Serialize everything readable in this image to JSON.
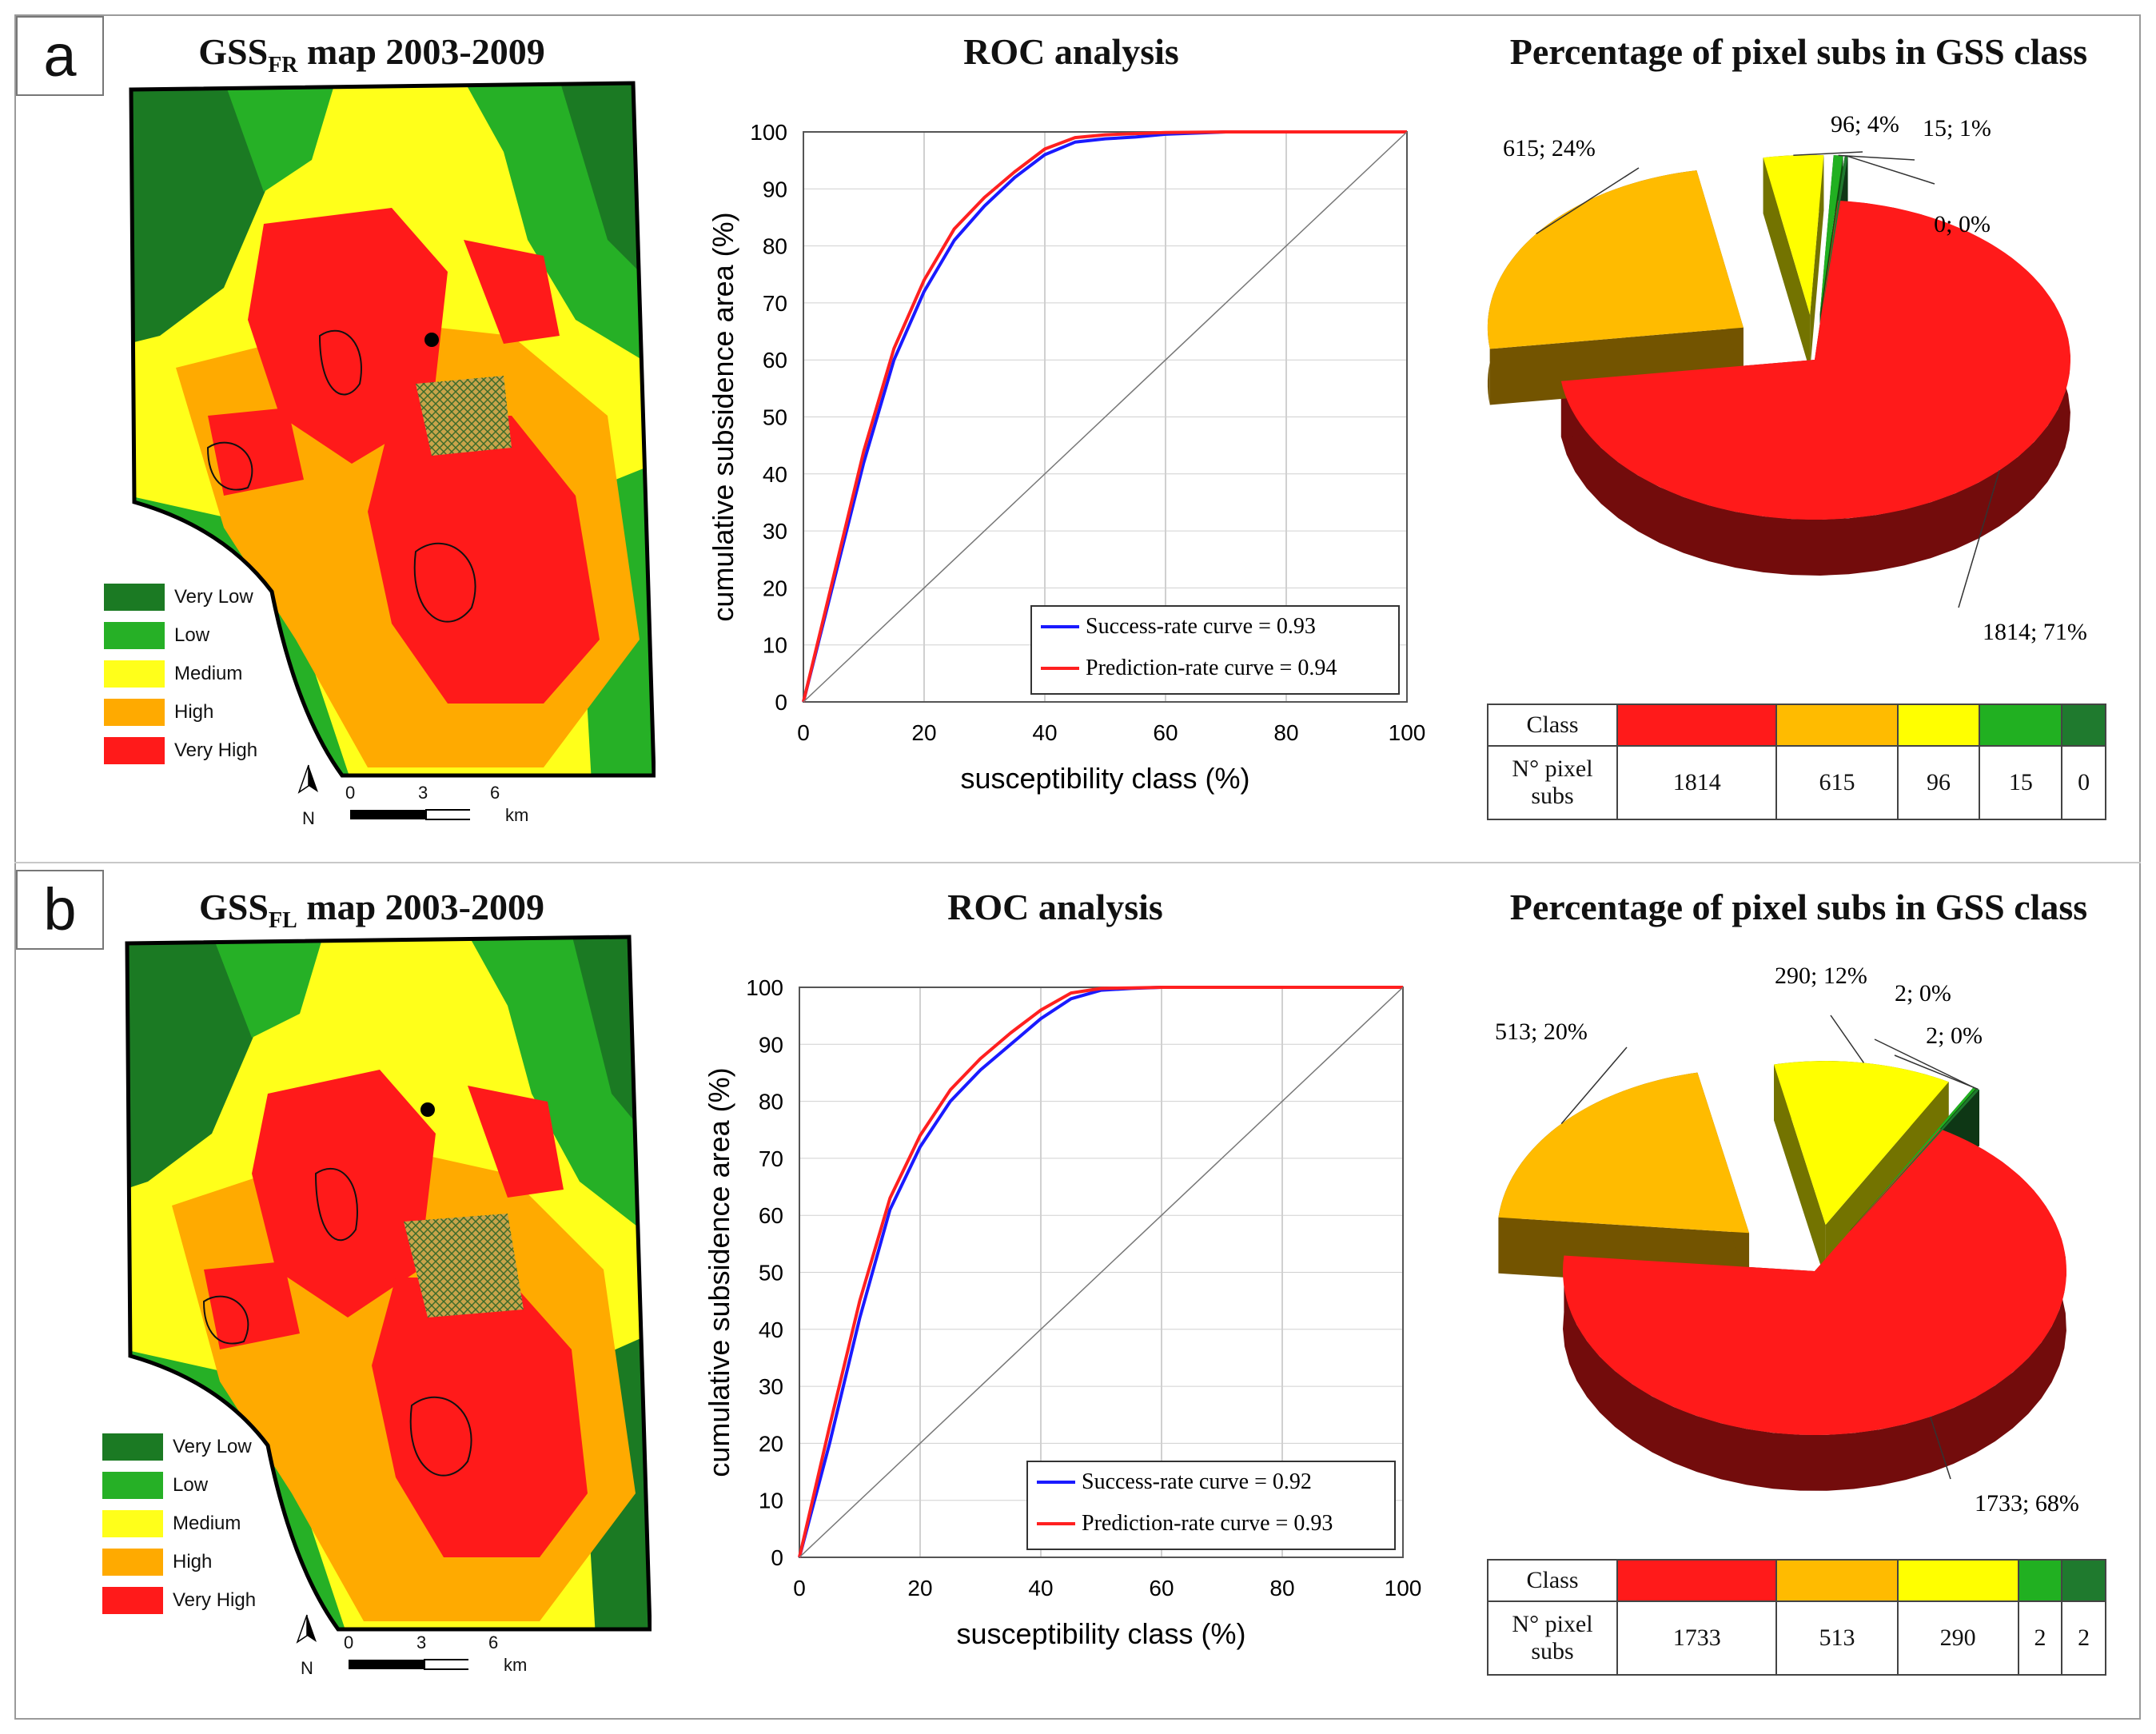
{
  "panels": [
    {
      "label": "a",
      "map_title_main": "GSS",
      "map_title_sub": "FR",
      "map_title_rest": "map 2003-2009",
      "roc_title": "ROC analysis",
      "pie_title": "Percentage of pixel subs in GSS class",
      "chart_data": {
        "type": "line",
        "title": "ROC analysis",
        "xlabel": "susceptibility class (%)",
        "ylabel": "cumulative subsidence area (%)",
        "xlim": [
          0,
          100
        ],
        "ylim": [
          0,
          100
        ],
        "xticks": [
          0,
          20,
          40,
          60,
          80,
          100
        ],
        "yticks": [
          0,
          10,
          20,
          30,
          40,
          50,
          60,
          70,
          80,
          90,
          100
        ],
        "grid": true,
        "legend_position": "bottom-right",
        "series": [
          {
            "name": "Success-rate curve = 0.93",
            "color": "#1a1aff",
            "x": [
              0,
              5,
              10,
              15,
              20,
              25,
              30,
              35,
              40,
              45,
              50,
              55,
              60,
              70,
              80,
              100
            ],
            "y": [
              0,
              21,
              42,
              60,
              72,
              81,
              87,
              92,
              96,
              98.2,
              98.8,
              99.1,
              99.6,
              100,
              100,
              100
            ]
          },
          {
            "name": "Prediction-rate curve = 0.94",
            "color": "#ff2020",
            "x": [
              0,
              5,
              10,
              15,
              20,
              25,
              30,
              35,
              40,
              45,
              50,
              55,
              60,
              70,
              80,
              100
            ],
            "y": [
              0,
              22,
              44,
              62,
              74,
              83,
              88.5,
              93,
              97,
              99,
              99.5,
              99.7,
              99.9,
              100,
              100,
              100
            ]
          },
          {
            "name": "reference",
            "color": "#777777",
            "x": [
              0,
              100
            ],
            "y": [
              0,
              100
            ]
          }
        ]
      },
      "pie_data": {
        "type": "pie",
        "categories": [
          "Very High",
          "High",
          "Medium",
          "Low",
          "Very Low"
        ],
        "values": [
          1814,
          615,
          96,
          15,
          0
        ],
        "labels": [
          "1814; 71%",
          "615; 24%",
          "96; 4%",
          "15; 1%",
          "0; 0%"
        ],
        "colors": [
          "#ff1a1a",
          "#ffbb00",
          "#ffff00",
          "#21b021",
          "#1f7a2e"
        ]
      },
      "table": {
        "class_label": "Class",
        "count_label": "N° pixel subs",
        "values": [
          "1814",
          "615",
          "96",
          "15",
          "0"
        ]
      },
      "legend": [
        {
          "label": "Very Low",
          "color": "#1b7a23"
        },
        {
          "label": "Low",
          "color": "#26b026"
        },
        {
          "label": "Medium",
          "color": "#ffff1a"
        },
        {
          "label": "High",
          "color": "#ffaa00"
        },
        {
          "label": "Very High",
          "color": "#ff1a1a"
        }
      ],
      "scale": {
        "north": "N",
        "t0": "0",
        "t1": "3",
        "t2": "6",
        "unit": "km"
      }
    },
    {
      "label": "b",
      "map_title_main": "GSS",
      "map_title_sub": "FL",
      "map_title_rest": "map 2003-2009",
      "roc_title": "ROC analysis",
      "pie_title": "Percentage of pixel subs in GSS class",
      "chart_data": {
        "type": "line",
        "title": "ROC analysis",
        "xlabel": "susceptibility class (%)",
        "ylabel": "cumulative subsidence area (%)",
        "xlim": [
          0,
          100
        ],
        "ylim": [
          0,
          100
        ],
        "xticks": [
          0,
          20,
          40,
          60,
          80,
          100
        ],
        "yticks": [
          0,
          10,
          20,
          30,
          40,
          50,
          60,
          70,
          80,
          90,
          100
        ],
        "grid": true,
        "legend_position": "bottom-right",
        "series": [
          {
            "name": "Success-rate curve = 0.92",
            "color": "#1a1aff",
            "x": [
              0,
              5,
              10,
              15,
              20,
              25,
              30,
              35,
              40,
              45,
              50,
              55,
              60,
              70,
              80,
              100
            ],
            "y": [
              0,
              20,
              42,
              61,
              72,
              80,
              85.5,
              90,
              94.5,
              98,
              99.5,
              99.8,
              100,
              100,
              100,
              100
            ]
          },
          {
            "name": "Prediction-rate curve = 0.93",
            "color": "#ff2020",
            "x": [
              0,
              5,
              10,
              15,
              20,
              25,
              30,
              35,
              40,
              45,
              50,
              55,
              60,
              70,
              80,
              100
            ],
            "y": [
              0,
              23,
              45,
              63,
              74,
              82,
              87.5,
              92,
              96,
              99,
              99.8,
              99.9,
              100,
              100,
              100,
              100
            ]
          },
          {
            "name": "reference",
            "color": "#777777",
            "x": [
              0,
              100
            ],
            "y": [
              0,
              100
            ]
          }
        ]
      },
      "pie_data": {
        "type": "pie",
        "categories": [
          "Very High",
          "High",
          "Medium",
          "Low",
          "Very Low"
        ],
        "values": [
          1733,
          513,
          290,
          2,
          2
        ],
        "labels": [
          "1733; 68%",
          "513; 20%",
          "290; 12%",
          "2; 0%",
          "2; 0%"
        ],
        "colors": [
          "#ff1a1a",
          "#ffbb00",
          "#ffff00",
          "#21b021",
          "#1f7a2e"
        ]
      },
      "table": {
        "class_label": "Class",
        "count_label": "N° pixel subs",
        "values": [
          "1733",
          "513",
          "290",
          "2",
          "2"
        ]
      },
      "legend": [
        {
          "label": "Very Low",
          "color": "#1b7a23"
        },
        {
          "label": "Low",
          "color": "#26b026"
        },
        {
          "label": "Medium",
          "color": "#ffff1a"
        },
        {
          "label": "High",
          "color": "#ffaa00"
        },
        {
          "label": "Very High",
          "color": "#ff1a1a"
        }
      ],
      "scale": {
        "north": "N",
        "t0": "0",
        "t1": "3",
        "t2": "6",
        "unit": "km"
      }
    }
  ]
}
